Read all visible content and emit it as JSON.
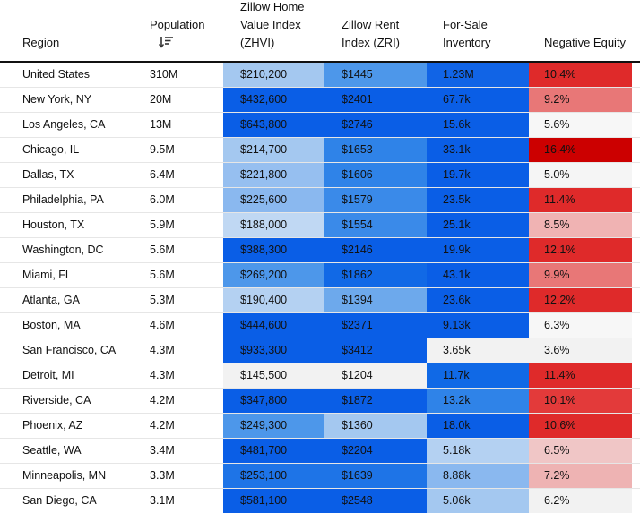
{
  "headers": {
    "region": "Region",
    "population": "Population",
    "zhvi_line1": "Zillow Home",
    "zhvi_line2": "Value Index",
    "zhvi_line3": "(ZHVI)",
    "zri_line1": "Zillow Rent",
    "zri_line2": "Index (ZRI)",
    "inventory_line1": "For-Sale",
    "inventory_line2": "Inventory",
    "negative_equity": "Negative Equity"
  },
  "sort_icon": "sort-descending-icon",
  "rows": [
    {
      "region": "United States",
      "population": "310M",
      "zhvi": "$210,200",
      "zri": "$1445",
      "inventory": "1.23M",
      "neg": "10.4%",
      "zhvi_color": "#a4c8f0",
      "zri_color": "#4d97ea",
      "inv_color": "#1164e6",
      "neg_color": "#df2a2a"
    },
    {
      "region": "New York, NY",
      "population": "20M",
      "zhvi": "$432,600",
      "zri": "$2401",
      "inventory": "67.7k",
      "neg": "9.2%",
      "zhvi_color": "#0a5ee6",
      "zri_color": "#0a5ee6",
      "inv_color": "#0a5ee6",
      "neg_color": "#e87777"
    },
    {
      "region": "Los Angeles, CA",
      "population": "13M",
      "zhvi": "$643,800",
      "zri": "$2746",
      "inventory": "15.6k",
      "neg": "5.6%",
      "zhvi_color": "#0a5ee6",
      "zri_color": "#0a5ee6",
      "inv_color": "#0a5ee6",
      "neg_color": "#f7f7f7"
    },
    {
      "region": "Chicago, IL",
      "population": "9.5M",
      "zhvi": "$214,700",
      "zri": "$1653",
      "inventory": "33.1k",
      "neg": "16.4%",
      "zhvi_color": "#a4c8f0",
      "zri_color": "#2f83e8",
      "inv_color": "#0a5ee6",
      "neg_color": "#cc0000"
    },
    {
      "region": "Dallas, TX",
      "population": "6.4M",
      "zhvi": "$221,800",
      "zri": "$1606",
      "inventory": "19.7k",
      "neg": "5.0%",
      "zhvi_color": "#96bff0",
      "zri_color": "#2f83e8",
      "inv_color": "#0a5ee6",
      "neg_color": "#f5f5f5"
    },
    {
      "region": "Philadelphia, PA",
      "population": "6.0M",
      "zhvi": "$225,600",
      "zri": "$1579",
      "inventory": "23.5k",
      "neg": "11.4%",
      "zhvi_color": "#8ab8ef",
      "zri_color": "#3a8ae9",
      "inv_color": "#0a5ee6",
      "neg_color": "#df2a2a"
    },
    {
      "region": "Houston, TX",
      "population": "5.9M",
      "zhvi": "$188,000",
      "zri": "$1554",
      "inventory": "25.1k",
      "neg": "8.5%",
      "zhvi_color": "#c0d8f3",
      "zri_color": "#3a8ae9",
      "inv_color": "#0a5ee6",
      "neg_color": "#f0b3b3"
    },
    {
      "region": "Washington, DC",
      "population": "5.6M",
      "zhvi": "$388,300",
      "zri": "$2146",
      "inventory": "19.9k",
      "neg": "12.1%",
      "zhvi_color": "#0a5ee6",
      "zri_color": "#0a5ee6",
      "inv_color": "#0a5ee6",
      "neg_color": "#df2a2a"
    },
    {
      "region": "Miami, FL",
      "population": "5.6M",
      "zhvi": "$269,200",
      "zri": "$1862",
      "inventory": "43.1k",
      "neg": "9.9%",
      "zhvi_color": "#4d97ea",
      "zri_color": "#1169e6",
      "inv_color": "#0a5ee6",
      "neg_color": "#e87777"
    },
    {
      "region": "Atlanta, GA",
      "population": "5.3M",
      "zhvi": "$190,400",
      "zri": "$1394",
      "inventory": "23.6k",
      "neg": "12.2%",
      "zhvi_color": "#b4d1f2",
      "zri_color": "#6da9ec",
      "inv_color": "#0a5ee6",
      "neg_color": "#df2a2a"
    },
    {
      "region": "Boston, MA",
      "population": "4.6M",
      "zhvi": "$444,600",
      "zri": "$2371",
      "inventory": "9.13k",
      "neg": "6.3%",
      "zhvi_color": "#0a5ee6",
      "zri_color": "#0a5ee6",
      "inv_color": "#0a5ee6",
      "neg_color": "#f7f7f7"
    },
    {
      "region": "San Francisco, CA",
      "population": "4.3M",
      "zhvi": "$933,300",
      "zri": "$3412",
      "inventory": "3.65k",
      "neg": "3.6%",
      "zhvi_color": "#0a5ee6",
      "zri_color": "#0a5ee6",
      "inv_color": "#f2f2f2",
      "neg_color": "#f2f2f2"
    },
    {
      "region": "Detroit, MI",
      "population": "4.3M",
      "zhvi": "$145,500",
      "zri": "$1204",
      "inventory": "11.7k",
      "neg": "11.4%",
      "zhvi_color": "#f2f2f2",
      "zri_color": "#f2f2f2",
      "inv_color": "#1069e6",
      "neg_color": "#df2a2a"
    },
    {
      "region": "Riverside, CA",
      "population": "4.2M",
      "zhvi": "$347,800",
      "zri": "$1872",
      "inventory": "13.2k",
      "neg": "10.1%",
      "zhvi_color": "#0a5ee6",
      "zri_color": "#0a5ee6",
      "inv_color": "#2f83e8",
      "neg_color": "#e33a3a"
    },
    {
      "region": "Phoenix, AZ",
      "population": "4.2M",
      "zhvi": "$249,300",
      "zri": "$1360",
      "inventory": "18.0k",
      "neg": "10.6%",
      "zhvi_color": "#4d97ea",
      "zri_color": "#a4c8f0",
      "inv_color": "#0a5ee6",
      "neg_color": "#df2a2a"
    },
    {
      "region": "Seattle, WA",
      "population": "3.4M",
      "zhvi": "$481,700",
      "zri": "$2204",
      "inventory": "5.18k",
      "neg": "6.5%",
      "zhvi_color": "#0a5ee6",
      "zri_color": "#0a5ee6",
      "inv_color": "#b4d1f2",
      "neg_color": "#f0c6c6"
    },
    {
      "region": "Minneapolis, MN",
      "population": "3.3M",
      "zhvi": "$253,100",
      "zri": "$1639",
      "inventory": "8.88k",
      "neg": "7.2%",
      "zhvi_color": "#1e74e7",
      "zri_color": "#1e74e7",
      "inv_color": "#8ab8ef",
      "neg_color": "#eeb3b3"
    },
    {
      "region": "San Diego, CA",
      "population": "3.1M",
      "zhvi": "$581,100",
      "zri": "$2548",
      "inventory": "5.06k",
      "neg": "6.2%",
      "zhvi_color": "#0a5ee6",
      "zri_color": "#0a5ee6",
      "inv_color": "#a4c8f0",
      "neg_color": "#f2f2f2"
    }
  ]
}
